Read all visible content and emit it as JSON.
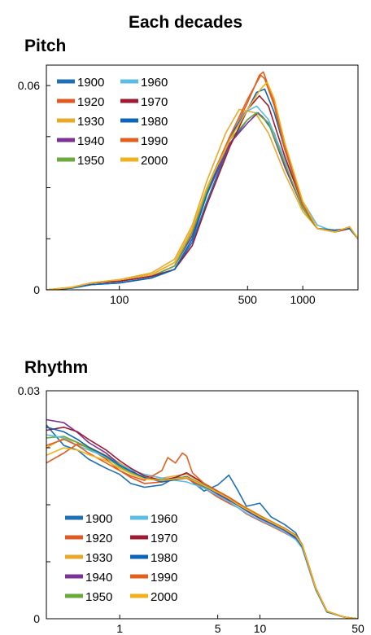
{
  "title": "Each decades",
  "colors": {
    "1900": "#1f6fb4",
    "1920": "#e05a23",
    "1930": "#e8a92a",
    "1940": "#7b3294",
    "1950": "#6aaa3c",
    "1960": "#5bbce4",
    "1970": "#9e1b32",
    "1980": "#0a64b8",
    "1990": "#e0601e",
    "2000": "#f0b21a"
  },
  "chart_data": [
    {
      "type": "line",
      "title": "Pitch",
      "xscale": "log",
      "xlim": [
        40,
        2000
      ],
      "ylim": [
        0,
        0.066
      ],
      "xticks": [
        100,
        500,
        1000
      ],
      "yticks_labeled": [
        0,
        0.06
      ],
      "yticks_minor": [
        0.015,
        0.03,
        0.045
      ],
      "legend": [
        "1900",
        "1920",
        "1930",
        "1940",
        "1950",
        "1960",
        "1970",
        "1980",
        "1990",
        "2000"
      ],
      "series": [
        {
          "name": "1900",
          "x": [
            40,
            55,
            70,
            100,
            150,
            200,
            250,
            300,
            400,
            500,
            560,
            600,
            700,
            800,
            1000,
            1200,
            1500,
            1800,
            2000
          ],
          "y": [
            0,
            0.0005,
            0.0015,
            0.002,
            0.0035,
            0.006,
            0.014,
            0.026,
            0.043,
            0.05,
            0.052,
            0.051,
            0.046,
            0.036,
            0.024,
            0.018,
            0.0175,
            0.018,
            0.015
          ]
        },
        {
          "name": "1920",
          "x": [
            40,
            55,
            70,
            100,
            150,
            200,
            250,
            300,
            400,
            500,
            580,
            610,
            700,
            800,
            1000,
            1200,
            1500,
            1800,
            2000
          ],
          "y": [
            0,
            0.0007,
            0.002,
            0.0025,
            0.004,
            0.007,
            0.017,
            0.029,
            0.044,
            0.055,
            0.063,
            0.064,
            0.055,
            0.042,
            0.025,
            0.018,
            0.017,
            0.0185,
            0.015
          ]
        },
        {
          "name": "1930",
          "x": [
            40,
            55,
            70,
            100,
            150,
            200,
            250,
            300,
            380,
            450,
            550,
            650,
            800,
            1000,
            1200,
            1500,
            1800,
            2000
          ],
          "y": [
            0,
            0.0008,
            0.002,
            0.003,
            0.005,
            0.009,
            0.019,
            0.032,
            0.046,
            0.053,
            0.052,
            0.046,
            0.034,
            0.023,
            0.018,
            0.017,
            0.018,
            0.015
          ]
        },
        {
          "name": "1940",
          "x": [
            40,
            55,
            70,
            100,
            150,
            200,
            250,
            300,
            400,
            500,
            570,
            650,
            800,
            1000,
            1200,
            1500,
            1800,
            2000
          ],
          "y": [
            0,
            0.0006,
            0.002,
            0.0025,
            0.004,
            0.007,
            0.016,
            0.028,
            0.043,
            0.049,
            0.052,
            0.049,
            0.036,
            0.024,
            0.018,
            0.0175,
            0.018,
            0.015
          ]
        },
        {
          "name": "1950",
          "x": [
            40,
            55,
            70,
            100,
            150,
            200,
            250,
            300,
            400,
            500,
            560,
            650,
            800,
            1000,
            1200,
            1500,
            1800,
            2000
          ],
          "y": [
            0,
            0.0006,
            0.002,
            0.0025,
            0.004,
            0.007,
            0.017,
            0.029,
            0.044,
            0.05,
            0.052,
            0.049,
            0.037,
            0.024,
            0.018,
            0.0175,
            0.018,
            0.015
          ]
        },
        {
          "name": "1960",
          "x": [
            40,
            55,
            70,
            100,
            150,
            200,
            250,
            300,
            400,
            480,
            560,
            650,
            800,
            1000,
            1200,
            1500,
            1800,
            2000
          ],
          "y": [
            0,
            0.0005,
            0.0015,
            0.002,
            0.0035,
            0.006,
            0.015,
            0.028,
            0.045,
            0.052,
            0.054,
            0.05,
            0.038,
            0.026,
            0.019,
            0.017,
            0.018,
            0.015
          ]
        },
        {
          "name": "1970",
          "x": [
            40,
            55,
            70,
            100,
            150,
            200,
            250,
            300,
            400,
            500,
            580,
            650,
            800,
            1000,
            1200,
            1500,
            1800,
            2000
          ],
          "y": [
            0,
            0.0006,
            0.002,
            0.0025,
            0.004,
            0.006,
            0.013,
            0.025,
            0.042,
            0.053,
            0.057,
            0.054,
            0.039,
            0.025,
            0.018,
            0.017,
            0.018,
            0.015
          ]
        },
        {
          "name": "1980",
          "x": [
            40,
            55,
            70,
            100,
            150,
            200,
            250,
            300,
            400,
            500,
            560,
            620,
            700,
            800,
            1000,
            1200,
            1500,
            1800,
            2000
          ],
          "y": [
            0,
            0.0005,
            0.0015,
            0.002,
            0.0035,
            0.006,
            0.015,
            0.028,
            0.045,
            0.053,
            0.058,
            0.059,
            0.052,
            0.041,
            0.025,
            0.018,
            0.0175,
            0.018,
            0.015
          ]
        },
        {
          "name": "1990",
          "x": [
            40,
            55,
            70,
            100,
            150,
            200,
            250,
            300,
            400,
            500,
            590,
            620,
            700,
            800,
            1000,
            1200,
            1500,
            1800,
            2000
          ],
          "y": [
            0,
            0.0007,
            0.002,
            0.003,
            0.0045,
            0.008,
            0.018,
            0.03,
            0.045,
            0.056,
            0.063,
            0.062,
            0.054,
            0.041,
            0.025,
            0.018,
            0.017,
            0.0185,
            0.015
          ]
        },
        {
          "name": "2000",
          "x": [
            40,
            55,
            70,
            100,
            150,
            200,
            250,
            300,
            400,
            500,
            590,
            640,
            700,
            800,
            1000,
            1200,
            1500,
            1800,
            2000
          ],
          "y": [
            0,
            0.0007,
            0.002,
            0.003,
            0.0045,
            0.008,
            0.018,
            0.03,
            0.044,
            0.053,
            0.059,
            0.061,
            0.056,
            0.043,
            0.026,
            0.018,
            0.017,
            0.0185,
            0.015
          ]
        }
      ]
    },
    {
      "type": "line",
      "title": "Rhythm",
      "xscale": "log",
      "xlim": [
        0.3,
        50
      ],
      "ylim": [
        0,
        0.03
      ],
      "xticks": [
        1,
        5,
        10,
        50
      ],
      "yticks_labeled": [
        0,
        0.03
      ],
      "yticks_minor": [
        0.0075,
        0.015,
        0.0225
      ],
      "legend": [
        "1900",
        "1920",
        "1930",
        "1940",
        "1950",
        "1960",
        "1970",
        "1980",
        "1990",
        "2000"
      ],
      "series": [
        {
          "name": "1900",
          "x": [
            0.3,
            0.4,
            0.5,
            0.6,
            0.8,
            1,
            1.2,
            1.5,
            2,
            2.5,
            3,
            4,
            5,
            6,
            7,
            8,
            10,
            12,
            15,
            18,
            20,
            25,
            30,
            40,
            50
          ],
          "y": [
            0.0255,
            0.0228,
            0.0222,
            0.021,
            0.0198,
            0.019,
            0.0178,
            0.0173,
            0.0176,
            0.0186,
            0.0186,
            0.0168,
            0.0176,
            0.0189,
            0.0168,
            0.0148,
            0.0152,
            0.0134,
            0.0124,
            0.0113,
            0.0097,
            0.004,
            0.001,
            0.0002,
            0
          ]
        },
        {
          "name": "1920",
          "x": [
            0.3,
            0.4,
            0.5,
            0.6,
            0.8,
            1,
            1.2,
            1.5,
            2,
            2.5,
            3,
            4,
            5,
            6,
            7,
            8,
            10,
            12,
            15,
            18,
            20,
            25,
            30,
            40,
            50
          ],
          "y": [
            0.0205,
            0.0218,
            0.023,
            0.0225,
            0.021,
            0.0195,
            0.0186,
            0.0178,
            0.018,
            0.0183,
            0.0185,
            0.0172,
            0.016,
            0.0152,
            0.0146,
            0.0138,
            0.0129,
            0.0122,
            0.0113,
            0.0105,
            0.0093,
            0.0038,
            0.0009,
            0.0002,
            0
          ]
        },
        {
          "name": "1930",
          "x": [
            0.3,
            0.4,
            0.5,
            0.6,
            0.8,
            1,
            1.2,
            1.5,
            2,
            2.5,
            3,
            4,
            5,
            6,
            7,
            8,
            10,
            12,
            15,
            18,
            20,
            25,
            30,
            40,
            50
          ],
          "y": [
            0.0225,
            0.0238,
            0.0232,
            0.0226,
            0.0215,
            0.0205,
            0.0196,
            0.019,
            0.0185,
            0.0188,
            0.019,
            0.0178,
            0.0168,
            0.016,
            0.0152,
            0.0146,
            0.0136,
            0.0128,
            0.0118,
            0.0108,
            0.0096,
            0.004,
            0.001,
            0.0002,
            0
          ]
        },
        {
          "name": "1940",
          "x": [
            0.3,
            0.4,
            0.5,
            0.6,
            0.8,
            1,
            1.2,
            1.5,
            2,
            2.5,
            3,
            4,
            5,
            6,
            7,
            8,
            10,
            12,
            15,
            18,
            20,
            25,
            30,
            40,
            50
          ],
          "y": [
            0.0262,
            0.0258,
            0.0245,
            0.0232,
            0.0218,
            0.0203,
            0.0195,
            0.0185,
            0.0182,
            0.0184,
            0.0186,
            0.0175,
            0.0164,
            0.0156,
            0.0149,
            0.0142,
            0.0132,
            0.0125,
            0.0116,
            0.0106,
            0.0095,
            0.0039,
            0.0009,
            0.0002,
            0
          ]
        },
        {
          "name": "1950",
          "x": [
            0.3,
            0.4,
            0.5,
            0.6,
            0.8,
            1,
            1.2,
            1.5,
            2,
            2.5,
            3,
            4,
            5,
            6,
            7,
            8,
            10,
            12,
            15,
            18,
            20,
            25,
            30,
            40,
            50
          ],
          "y": [
            0.0238,
            0.024,
            0.0232,
            0.0224,
            0.0212,
            0.02,
            0.0192,
            0.0185,
            0.0183,
            0.0185,
            0.0187,
            0.0176,
            0.0166,
            0.0158,
            0.015,
            0.0144,
            0.0134,
            0.0126,
            0.0117,
            0.0107,
            0.0095,
            0.0039,
            0.0009,
            0.0002,
            0
          ]
        },
        {
          "name": "1960",
          "x": [
            0.3,
            0.4,
            0.5,
            0.6,
            0.8,
            1,
            1.2,
            1.5,
            2,
            2.5,
            3,
            4,
            5,
            6,
            7,
            8,
            10,
            12,
            15,
            18,
            20,
            25,
            30,
            40,
            50
          ],
          "y": [
            0.0242,
            0.0238,
            0.0228,
            0.0222,
            0.0213,
            0.0203,
            0.0196,
            0.019,
            0.0185,
            0.0182,
            0.018,
            0.0172,
            0.0162,
            0.0154,
            0.0146,
            0.0139,
            0.013,
            0.0123,
            0.0114,
            0.0104,
            0.0093,
            0.0038,
            0.0009,
            0.0002,
            0
          ]
        },
        {
          "name": "1970",
          "x": [
            0.3,
            0.4,
            0.5,
            0.6,
            0.8,
            1,
            1.2,
            1.5,
            2,
            2.5,
            3,
            4,
            5,
            6,
            7,
            8,
            10,
            12,
            15,
            18,
            20,
            25,
            30,
            40,
            50
          ],
          "y": [
            0.0248,
            0.0252,
            0.0246,
            0.0236,
            0.0222,
            0.0208,
            0.0198,
            0.0188,
            0.0182,
            0.0186,
            0.0192,
            0.0178,
            0.0168,
            0.0159,
            0.0151,
            0.0145,
            0.0135,
            0.0127,
            0.0118,
            0.0108,
            0.0096,
            0.004,
            0.001,
            0.0002,
            0
          ]
        },
        {
          "name": "1980",
          "x": [
            0.3,
            0.4,
            0.5,
            0.6,
            0.8,
            1,
            1.2,
            1.5,
            2,
            2.5,
            3,
            4,
            5,
            6,
            7,
            8,
            10,
            12,
            15,
            18,
            20,
            25,
            30,
            40,
            50
          ],
          "y": [
            0.0252,
            0.0246,
            0.0236,
            0.0226,
            0.0214,
            0.0202,
            0.0194,
            0.0186,
            0.018,
            0.0183,
            0.0187,
            0.0174,
            0.0165,
            0.0157,
            0.0149,
            0.0143,
            0.0133,
            0.0126,
            0.0117,
            0.0107,
            0.0095,
            0.0039,
            0.0009,
            0.0002,
            0
          ]
        },
        {
          "name": "1990",
          "x": [
            0.3,
            0.4,
            0.5,
            0.6,
            0.8,
            1,
            1.2,
            1.5,
            2,
            2.2,
            2.5,
            2.8,
            3,
            3.3,
            4,
            5,
            6,
            7,
            8,
            10,
            12,
            15,
            18,
            20,
            25,
            30,
            40,
            50
          ],
          "y": [
            0.0228,
            0.0236,
            0.0228,
            0.0218,
            0.0205,
            0.0195,
            0.0188,
            0.0182,
            0.0195,
            0.0212,
            0.0205,
            0.0218,
            0.0214,
            0.0192,
            0.0178,
            0.0168,
            0.016,
            0.0152,
            0.0145,
            0.0135,
            0.0128,
            0.0119,
            0.011,
            0.0098,
            0.0041,
            0.001,
            0.0002,
            0
          ]
        },
        {
          "name": "2000",
          "x": [
            0.3,
            0.4,
            0.5,
            0.6,
            0.8,
            1,
            1.2,
            1.5,
            2,
            2.5,
            3,
            4,
            5,
            6,
            7,
            8,
            10,
            12,
            15,
            18,
            20,
            25,
            30,
            40,
            50
          ],
          "y": [
            0.0215,
            0.0225,
            0.0222,
            0.0216,
            0.0208,
            0.0198,
            0.0191,
            0.0184,
            0.0182,
            0.0184,
            0.0186,
            0.0175,
            0.0166,
            0.0158,
            0.015,
            0.0144,
            0.0134,
            0.0127,
            0.0118,
            0.0109,
            0.0097,
            0.004,
            0.001,
            0.0002,
            0
          ]
        }
      ]
    }
  ]
}
